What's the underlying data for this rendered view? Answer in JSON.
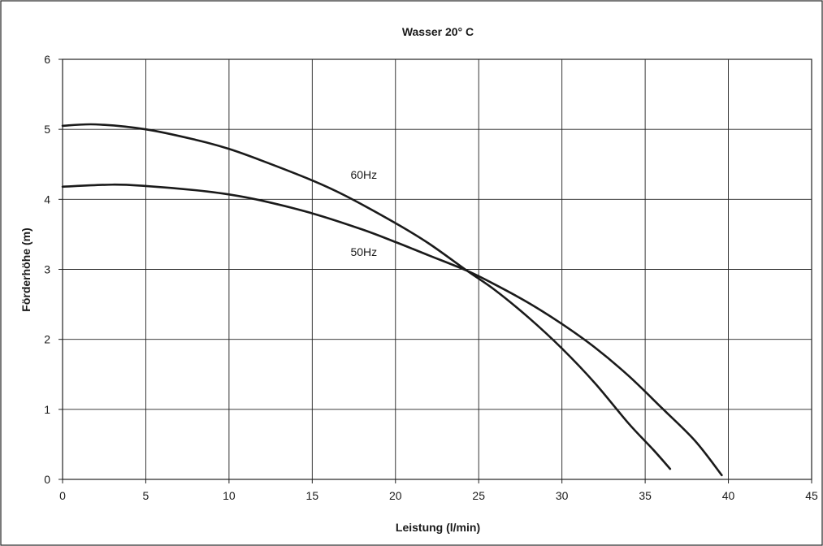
{
  "chart_data": {
    "type": "line",
    "title": "Wasser 20° C",
    "xlabel": "Leistung (l/min)",
    "ylabel": "Förderhöhe (m)",
    "xlim": [
      0,
      45
    ],
    "ylim": [
      0,
      6
    ],
    "x_ticks": [
      "0",
      "5",
      "10",
      "15",
      "20",
      "25",
      "30",
      "35",
      "40",
      "45"
    ],
    "y_ticks": [
      "0",
      "1",
      "2",
      "3",
      "4",
      "5",
      "6"
    ],
    "grid": true,
    "legend": "none",
    "series": [
      {
        "name": "60Hz",
        "x": [
          0,
          2,
          5,
          8,
          10,
          12,
          15,
          17,
          20,
          22,
          24.3,
          26,
          28,
          30,
          32,
          34,
          35.5,
          36.5
        ],
        "y": [
          5.05,
          5.07,
          5.0,
          4.85,
          4.72,
          4.55,
          4.27,
          4.05,
          3.66,
          3.37,
          2.98,
          2.7,
          2.31,
          1.87,
          1.37,
          0.8,
          0.42,
          0.15
        ]
      },
      {
        "name": "50Hz",
        "x": [
          0,
          3,
          5,
          8,
          10,
          12,
          15,
          18,
          20,
          22,
          24.3,
          26,
          28,
          30,
          32,
          34,
          36,
          38,
          39.6
        ],
        "y": [
          4.18,
          4.21,
          4.19,
          4.13,
          4.07,
          3.98,
          3.8,
          3.57,
          3.39,
          3.2,
          2.98,
          2.78,
          2.52,
          2.22,
          1.88,
          1.48,
          1.02,
          0.55,
          0.06
        ]
      }
    ],
    "annotations": [
      {
        "text": "60Hz",
        "x": 17.3,
        "y": 4.35
      },
      {
        "text": "50Hz",
        "x": 17.3,
        "y": 3.25
      }
    ]
  }
}
